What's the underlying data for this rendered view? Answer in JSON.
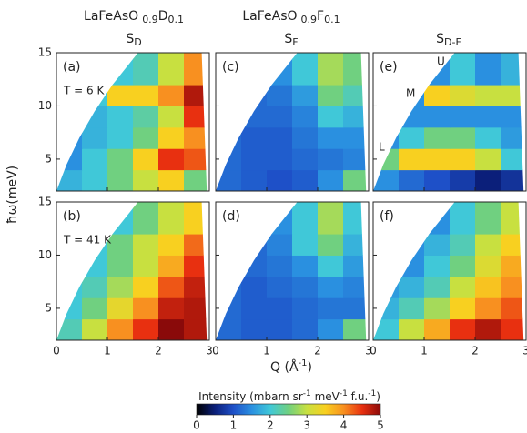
{
  "column_headers": [
    {
      "formula": "LaFeAsO",
      "sub1": "0.9",
      "element": "D",
      "sub2": "0.1",
      "symbol": "S",
      "symbol_sub": "D"
    },
    {
      "formula": "LaFeAsO",
      "sub1": "0.9",
      "element": "F",
      "sub2": "0.1",
      "symbol": "S",
      "symbol_sub": "F"
    },
    {
      "symbol": "S",
      "symbol_sub": "D-F"
    }
  ],
  "y_label": "ħω(meV)",
  "x_label": [
    "Q (Å",
    "-1",
    ")"
  ],
  "colorbar": {
    "label": [
      "Intensity  (mbarn sr",
      "-1",
      " meV",
      "-1",
      " f.u.",
      "-1",
      ")"
    ],
    "clim": [
      0,
      5
    ],
    "ticks": [
      0,
      1,
      2,
      3,
      4,
      5
    ],
    "colormap": [
      "#000000",
      "#0b1f7a",
      "#1e50c8",
      "#2a90e0",
      "#40c8d8",
      "#70d080",
      "#c8e040",
      "#f8d020",
      "#f89020",
      "#e83010",
      "#8a0a0a"
    ]
  },
  "chart_data": [
    {
      "type": "heatmap",
      "panel": "(a)",
      "annotations": [
        "T = 6 K"
      ],
      "xlim": [
        0,
        3
      ],
      "ylim": [
        2,
        15
      ],
      "xticks": [
        0,
        1,
        2,
        3
      ],
      "yticks": [
        5,
        10,
        15
      ],
      "x_bins": [
        0,
        0.5,
        1,
        1.5,
        2,
        2.5,
        3
      ],
      "y_bins": [
        2,
        4,
        6,
        8,
        10,
        12,
        15
      ],
      "values": [
        [
          1.8,
          2,
          2.5,
          3,
          3.5,
          2.5
        ],
        [
          1.5,
          2,
          2.5,
          3.5,
          4.5,
          4.3
        ],
        [
          1.5,
          1.8,
          2,
          2.5,
          3.5,
          4
        ],
        [
          null,
          1.8,
          2,
          2.3,
          3,
          4.5
        ],
        [
          null,
          2,
          3.5,
          3.5,
          4,
          4.8
        ],
        [
          null,
          null,
          2,
          2.2,
          3,
          4
        ]
      ]
    },
    {
      "type": "heatmap",
      "panel": "(b)",
      "annotations": [
        "T = 41 K"
      ],
      "xlim": [
        0,
        3
      ],
      "ylim": [
        2,
        15
      ],
      "xticks": [
        0,
        1,
        2,
        3
      ],
      "yticks": [
        5,
        10,
        15
      ],
      "x_bins": [
        0,
        0.5,
        1,
        1.5,
        2,
        2.5,
        3
      ],
      "y_bins": [
        2,
        4,
        6,
        8,
        10,
        12,
        15
      ],
      "values": [
        [
          2.2,
          3,
          4,
          4.5,
          5,
          4.8
        ],
        [
          2,
          2.5,
          3.3,
          4,
          4.7,
          4.8
        ],
        [
          2,
          2.2,
          2.8,
          3.5,
          4.3,
          4.7
        ],
        [
          null,
          2,
          2.5,
          3,
          3.8,
          4.5
        ],
        [
          null,
          2,
          2.5,
          3,
          3.5,
          4.2
        ],
        [
          null,
          null,
          2,
          2.5,
          3,
          3.5
        ]
      ]
    },
    {
      "type": "heatmap",
      "panel": "(c)",
      "annotations": [],
      "xlim": [
        0,
        3
      ],
      "ylim": [
        2,
        15
      ],
      "xticks": [
        0,
        1,
        2,
        3
      ],
      "yticks": [
        5,
        10,
        15
      ],
      "x_bins": [
        0,
        0.5,
        1,
        1.5,
        2,
        2.5,
        3
      ],
      "y_bins": [
        2,
        4,
        6,
        8,
        10,
        12,
        15
      ],
      "values": [
        [
          1.2,
          1.1,
          1,
          1.1,
          1.5,
          2.5
        ],
        [
          1.2,
          1.1,
          1.1,
          1.2,
          1.3,
          1.4
        ],
        [
          1.2,
          1.1,
          1.1,
          1.3,
          1.5,
          1.5
        ],
        [
          null,
          1.2,
          1.2,
          1.4,
          2,
          1.8
        ],
        [
          null,
          1.2,
          1.3,
          1.6,
          2.5,
          2.2
        ],
        [
          null,
          null,
          1.5,
          2,
          2.8,
          2.5
        ]
      ]
    },
    {
      "type": "heatmap",
      "panel": "(d)",
      "annotations": [],
      "xlim": [
        0,
        3
      ],
      "ylim": [
        2,
        15
      ],
      "xticks": [
        0,
        1,
        2,
        3
      ],
      "yticks": [
        5,
        10,
        15
      ],
      "x_bins": [
        0,
        0.5,
        1,
        1.5,
        2,
        2.5,
        3
      ],
      "y_bins": [
        2,
        4,
        6,
        8,
        10,
        12,
        15
      ],
      "values": [
        [
          1.2,
          1.1,
          1.1,
          1.2,
          1.5,
          2.5
        ],
        [
          1.2,
          1.1,
          1.1,
          1.2,
          1.3,
          1.3
        ],
        [
          1.2,
          1.1,
          1.2,
          1.3,
          1.5,
          1.4
        ],
        [
          null,
          1.2,
          1.3,
          1.5,
          2,
          1.6
        ],
        [
          null,
          1.2,
          1.4,
          2,
          2.5,
          1.8
        ],
        [
          null,
          null,
          1.5,
          2,
          2.8,
          2
        ]
      ]
    },
    {
      "type": "heatmap",
      "panel": "(e)",
      "annotations": [
        "U",
        "M",
        "L"
      ],
      "xlim": [
        0,
        3
      ],
      "ylim": [
        2,
        15
      ],
      "xticks": [
        0,
        1,
        2,
        3
      ],
      "yticks": [
        5,
        10,
        15
      ],
      "x_bins": [
        0,
        0.5,
        1,
        1.5,
        2,
        2.5,
        3
      ],
      "y_bins": [
        2,
        4,
        6,
        8,
        10,
        12,
        15
      ],
      "values": [
        [
          1.5,
          1.2,
          1,
          0.8,
          0.5,
          0.7
        ],
        [
          2.5,
          3.5,
          3.5,
          3.5,
          3,
          2
        ],
        [
          1.5,
          2,
          2.5,
          2.5,
          2,
          1.6
        ],
        [
          null,
          1.5,
          1.5,
          1.5,
          1.5,
          1.5
        ],
        [
          null,
          1.5,
          3.5,
          3.2,
          3,
          3
        ],
        [
          null,
          null,
          1.5,
          2,
          1.5,
          1.8
        ]
      ]
    },
    {
      "type": "heatmap",
      "panel": "(f)",
      "annotations": [],
      "xlim": [
        0,
        3
      ],
      "ylim": [
        2,
        15
      ],
      "xticks": [
        0,
        1,
        2,
        3
      ],
      "yticks": [
        5,
        10,
        15
      ],
      "x_bins": [
        0,
        0.5,
        1,
        1.5,
        2,
        2.5,
        3
      ],
      "y_bins": [
        2,
        4,
        6,
        8,
        10,
        12,
        15
      ],
      "values": [
        [
          2,
          3,
          3.8,
          4.5,
          4.8,
          4.5
        ],
        [
          1.8,
          2.2,
          2.8,
          3.5,
          4,
          4.3
        ],
        [
          1.6,
          1.8,
          2.2,
          3,
          3.6,
          4
        ],
        [
          null,
          1.5,
          2,
          2.5,
          3.2,
          3.8
        ],
        [
          null,
          1.5,
          1.8,
          2.2,
          3,
          3.5
        ],
        [
          null,
          null,
          1.5,
          2,
          2.5,
          3
        ]
      ]
    }
  ]
}
